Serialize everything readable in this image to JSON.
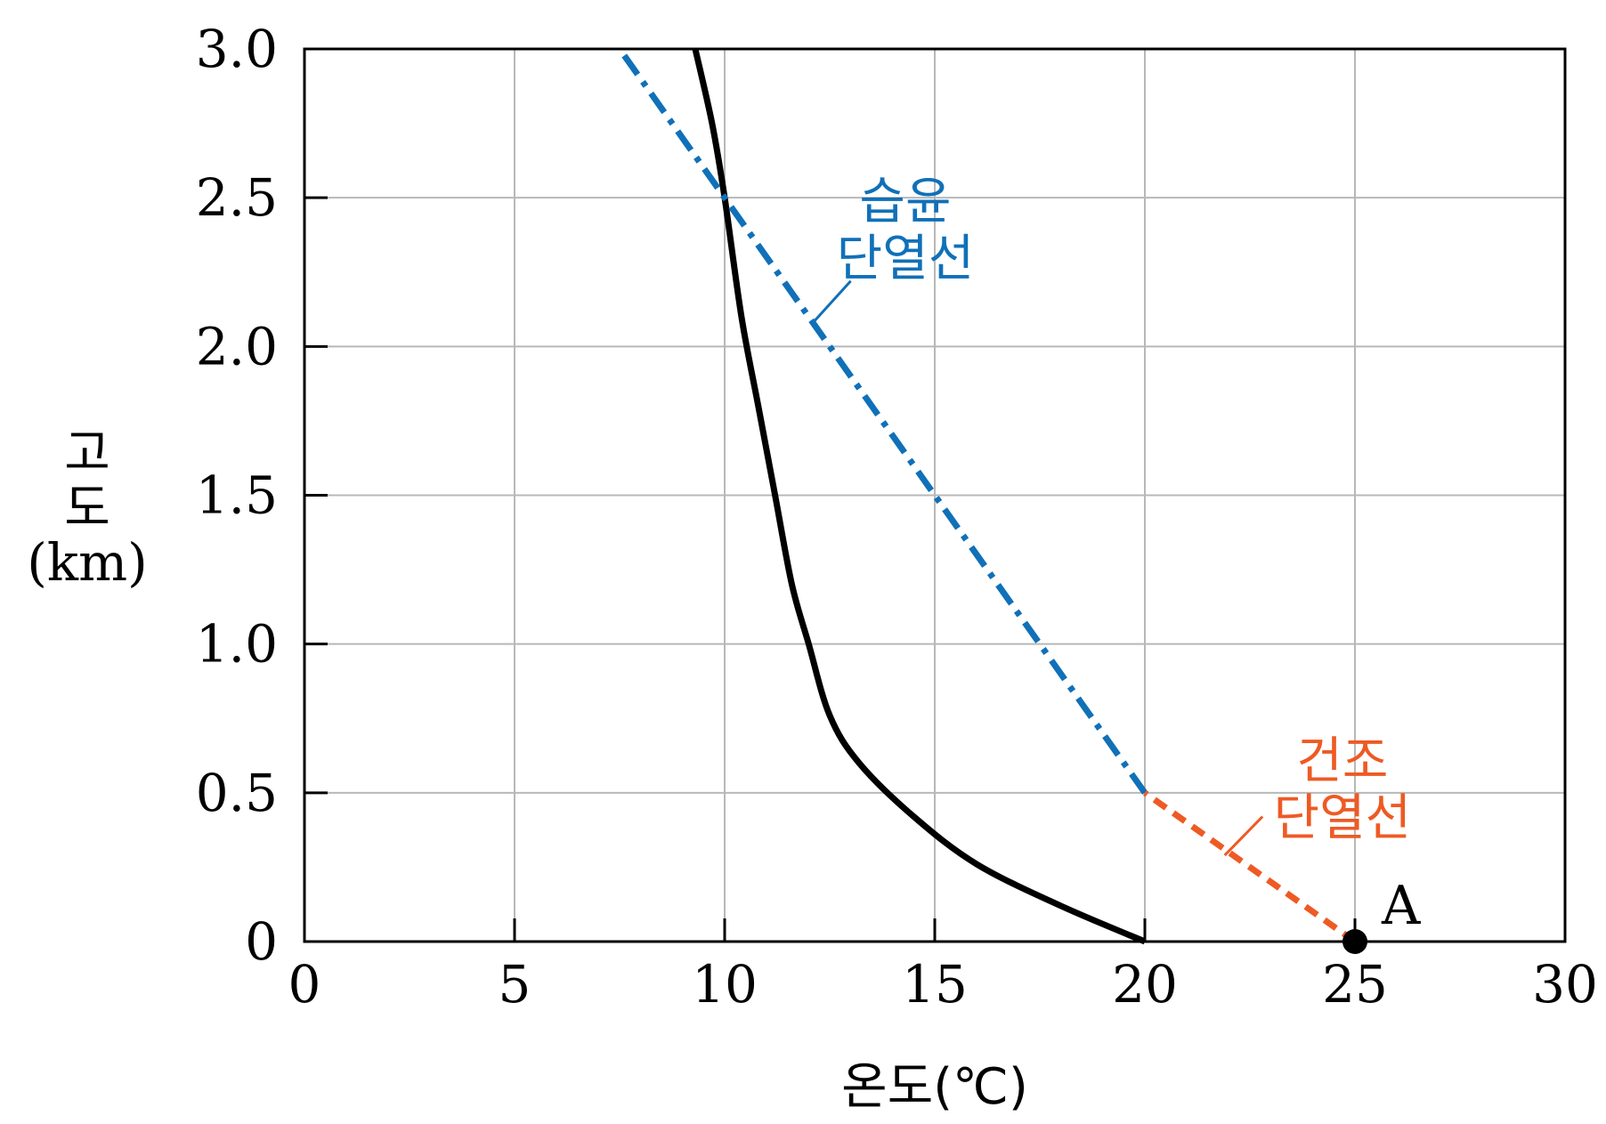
{
  "chart_data": {
    "type": "line",
    "xlabel": "온도(℃)",
    "ylabel_lines": [
      "고",
      "도",
      "(km)"
    ],
    "xlim": [
      0,
      30
    ],
    "ylim": [
      0,
      3
    ],
    "xticks": [
      0,
      5,
      10,
      15,
      20,
      25,
      30
    ],
    "xtick_labels": [
      "0",
      "5",
      "10",
      "15",
      "20",
      "25",
      "30"
    ],
    "yticks": [
      0,
      0.5,
      1.0,
      1.5,
      2.0,
      2.5,
      3.0
    ],
    "ytick_labels": [
      "0",
      "0.5",
      "1.0",
      "1.5",
      "2.0",
      "2.5",
      "3.0"
    ],
    "grid": true,
    "series": [
      {
        "style": "solid",
        "color": "#000000",
        "x": [
          20,
          18,
          16,
          14.5,
          13.2,
          12.5,
          12,
          11.6,
          11.2,
          10.8,
          10.4,
          10,
          9.7,
          9.3
        ],
        "y": [
          0,
          0.12,
          0.26,
          0.42,
          0.6,
          0.76,
          1.0,
          1.2,
          1.5,
          1.8,
          2.1,
          2.5,
          2.75,
          3.0
        ]
      },
      {
        "name": "습윤 단열선",
        "style": "dashdot",
        "color": "#1070b8",
        "x": [
          20,
          7.5
        ],
        "y": [
          0.5,
          3.0
        ]
      },
      {
        "name": "건조 단열선",
        "style": "dashed",
        "color": "#ee5a24",
        "x": [
          25,
          20
        ],
        "y": [
          0,
          0.5
        ]
      }
    ],
    "annotations": [
      {
        "lines": [
          "습윤",
          "단열선"
        ],
        "color": "#1070b8",
        "text_at": [
          14.3,
          2.43
        ],
        "leader_from": [
          13.0,
          2.22
        ],
        "leader_to": [
          12.1,
          2.08
        ]
      },
      {
        "lines": [
          "건조",
          "단열선"
        ],
        "color": "#ee5a24",
        "text_at": [
          24.7,
          0.55
        ],
        "leader_from": [
          22.8,
          0.42
        ],
        "leader_to": [
          21.9,
          0.29
        ]
      }
    ],
    "points": [
      {
        "label": "A",
        "x": 25,
        "y": 0,
        "color": "#000000"
      }
    ]
  }
}
